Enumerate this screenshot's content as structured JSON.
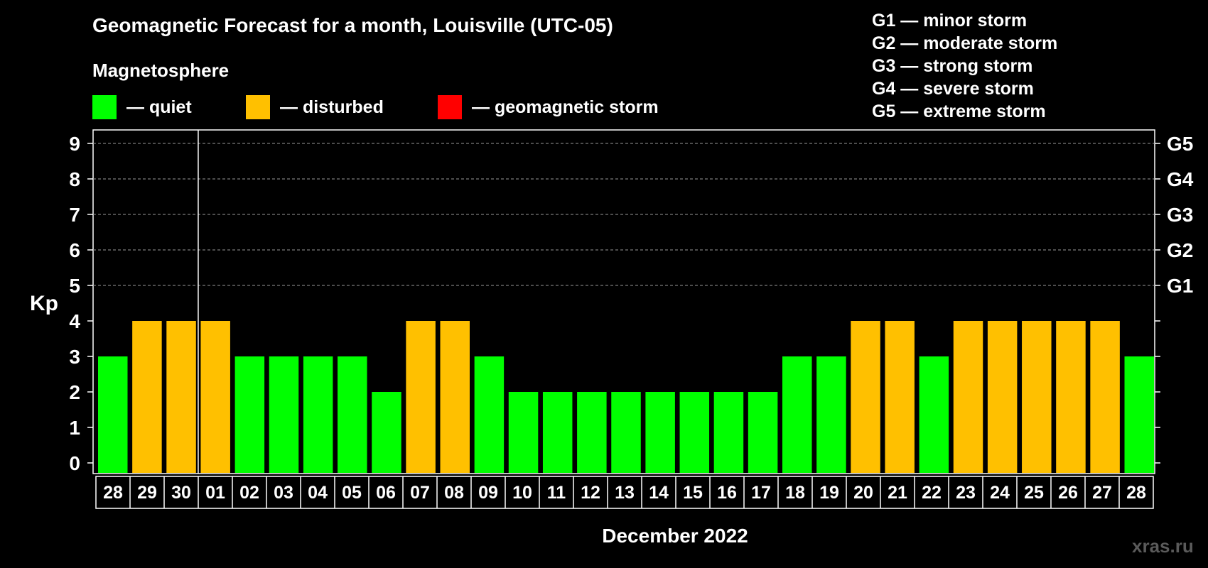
{
  "header": {
    "title": "Geomagnetic Forecast for a month, Louisville (UTC-05)",
    "subtitle": "Magnetosphere"
  },
  "legend": [
    {
      "label": "— quiet",
      "color": "#00ff00"
    },
    {
      "label": "— disturbed",
      "color": "#ffc000"
    },
    {
      "label": "— geomagnetic storm",
      "color": "#ff0000"
    }
  ],
  "storm_levels": [
    "G1 — minor storm",
    "G2 — moderate storm",
    "G3 — strong storm",
    "G4 — severe storm",
    "G5 — extreme storm"
  ],
  "watermark": "xras.ru",
  "chart_data": {
    "type": "bar",
    "ylabel": "Kp",
    "xlabel": "December 2022",
    "ylim": [
      0,
      9
    ],
    "yticks": [
      "0",
      "1",
      "2",
      "3",
      "4",
      "5",
      "6",
      "7",
      "8",
      "9"
    ],
    "right_axis_labels": [
      {
        "value": 5,
        "label": "G1"
      },
      {
        "value": 6,
        "label": "G2"
      },
      {
        "value": 7,
        "label": "G3"
      },
      {
        "value": 8,
        "label": "G4"
      },
      {
        "value": 9,
        "label": "G5"
      }
    ],
    "grid": "dashed horizontal at 5-9",
    "month_divider_after_index": 2,
    "categories": [
      "28",
      "29",
      "30",
      "01",
      "02",
      "03",
      "04",
      "05",
      "06",
      "07",
      "08",
      "09",
      "10",
      "11",
      "12",
      "13",
      "14",
      "15",
      "16",
      "17",
      "18",
      "19",
      "20",
      "21",
      "22",
      "23",
      "24",
      "25",
      "26",
      "27",
      "28"
    ],
    "values": [
      3,
      4,
      4,
      4,
      3,
      3,
      3,
      3,
      2,
      4,
      4,
      3,
      2,
      2,
      2,
      2,
      2,
      2,
      2,
      2,
      3,
      3,
      4,
      4,
      3,
      4,
      4,
      4,
      4,
      4,
      3
    ],
    "status": [
      "quiet",
      "disturbed",
      "disturbed",
      "disturbed",
      "quiet",
      "quiet",
      "quiet",
      "quiet",
      "quiet",
      "disturbed",
      "disturbed",
      "quiet",
      "quiet",
      "quiet",
      "quiet",
      "quiet",
      "quiet",
      "quiet",
      "quiet",
      "quiet",
      "quiet",
      "quiet",
      "disturbed",
      "disturbed",
      "quiet",
      "disturbed",
      "disturbed",
      "disturbed",
      "disturbed",
      "disturbed",
      "quiet"
    ],
    "status_colors": {
      "quiet": "#00ff00",
      "disturbed": "#ffc000",
      "storm": "#ff0000"
    }
  }
}
